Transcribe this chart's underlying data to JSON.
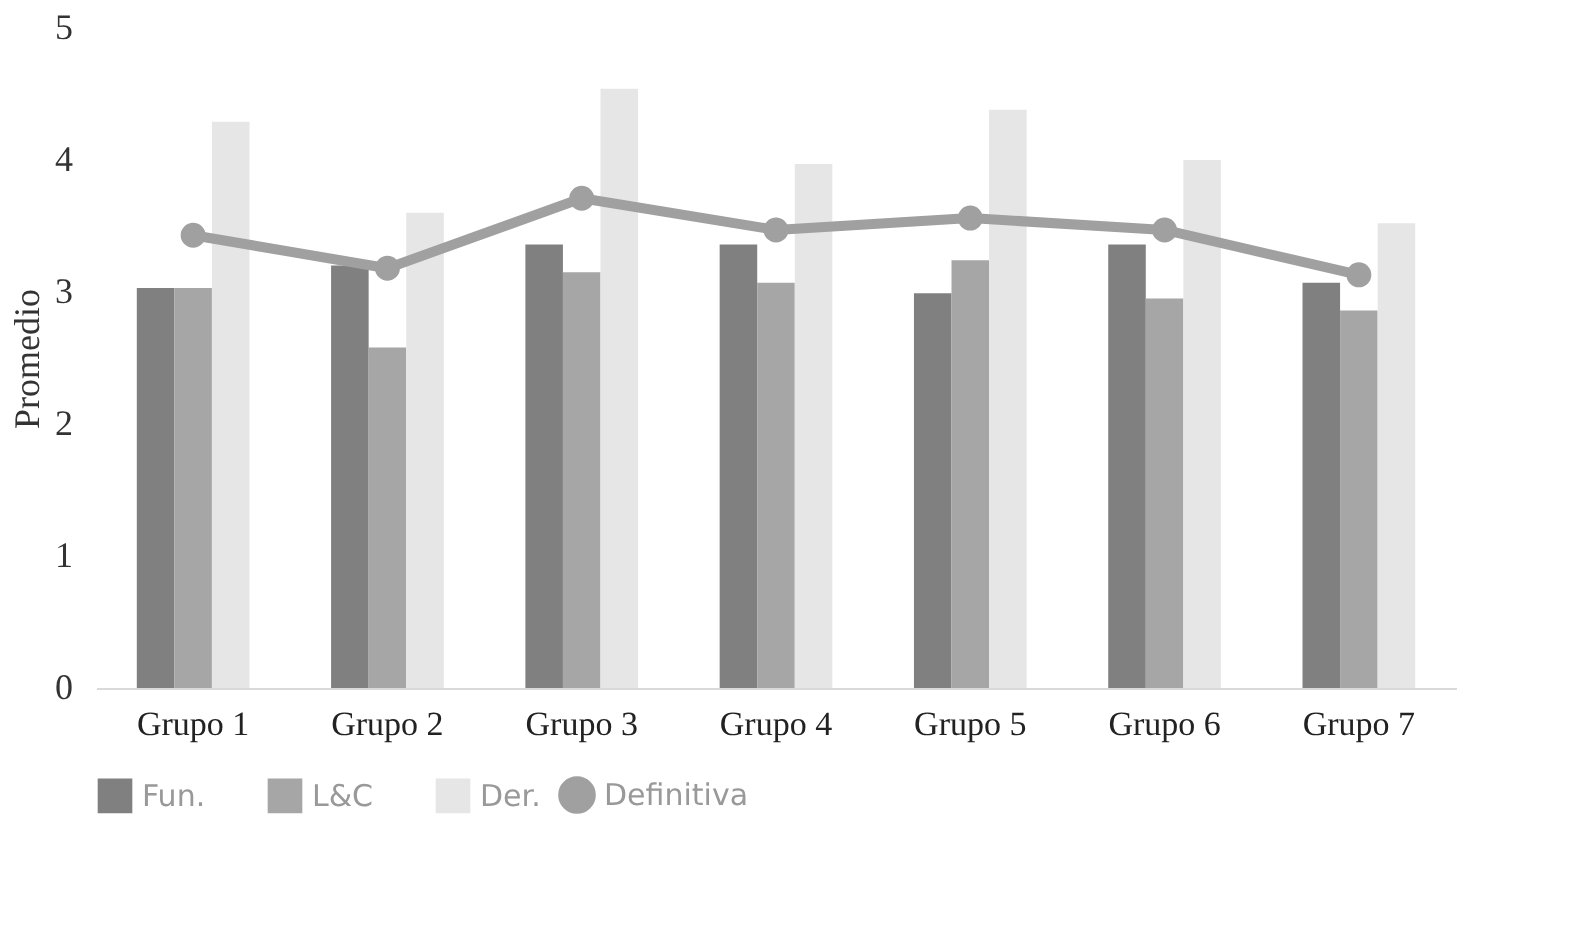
{
  "chart_data": {
    "type": "bar",
    "ylabel": "Promedio",
    "categories": [
      "Grupo 1",
      "Grupo 2",
      "Grupo 3",
      "Grupo 4",
      "Grupo 5",
      "Grupo 6",
      "Grupo 7"
    ],
    "series": [
      {
        "name": "Fun.",
        "color": "#808080",
        "values": [
          3.03,
          3.2,
          3.36,
          3.36,
          2.99,
          3.36,
          3.07
        ]
      },
      {
        "name": "L&C",
        "color": "#a6a6a6",
        "values": [
          3.03,
          2.58,
          3.15,
          3.07,
          3.24,
          2.95,
          2.86
        ]
      },
      {
        "name": "Der.",
        "color": "#e6e6e6",
        "values": [
          4.29,
          3.6,
          4.54,
          3.97,
          4.38,
          4.0,
          3.52
        ]
      },
      {
        "name": "Definitiva",
        "type": "line",
        "color": "#a0a0a0",
        "marker": "circle",
        "values": [
          3.43,
          3.18,
          3.71,
          3.47,
          3.56,
          3.47,
          3.13
        ]
      }
    ],
    "ylim": [
      0,
      5
    ],
    "yticks": [
      0,
      1,
      2,
      3,
      4,
      5
    ],
    "grid": false,
    "legend": "bottom"
  }
}
